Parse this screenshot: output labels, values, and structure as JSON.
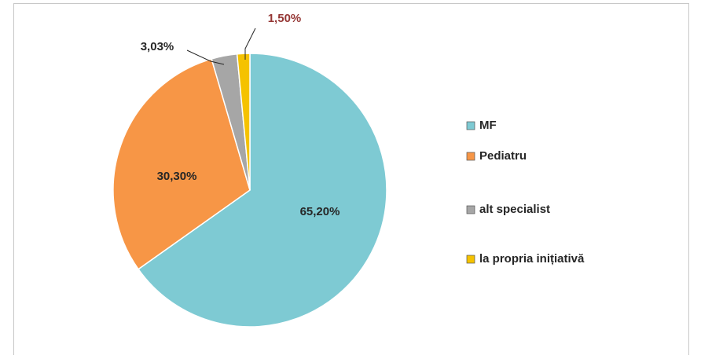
{
  "chart_data": {
    "type": "pie",
    "categories": [
      "MF",
      "Pediatru",
      "alt specialist",
      "la propria inițiativă"
    ],
    "values": [
      65.2,
      30.3,
      3.03,
      1.5
    ],
    "value_labels": [
      "65,20%",
      "30,30%",
      "3,03%",
      "1,50%"
    ],
    "colors": [
      "#7ecad3",
      "#f79646",
      "#a6a6a6",
      "#f5c200"
    ],
    "legend": "right"
  }
}
